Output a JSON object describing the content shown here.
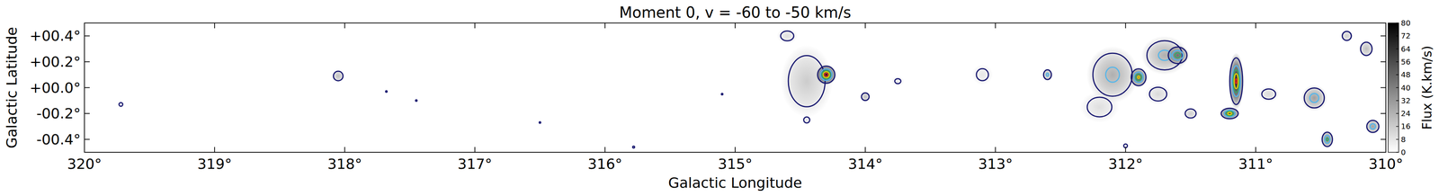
{
  "chart_data": {
    "type": "heatmap",
    "title": "Moment 0, v = -60 to -50 km/s",
    "x_label": "Galactic Longitude",
    "y_label": "Galactic Latitude",
    "xlim": [
      320,
      310
    ],
    "ylim": [
      -0.5,
      0.5
    ],
    "xticks": [
      {
        "value": 320,
        "label": "320°"
      },
      {
        "value": 319,
        "label": "319°"
      },
      {
        "value": 318,
        "label": "318°"
      },
      {
        "value": 317,
        "label": "317°"
      },
      {
        "value": 316,
        "label": "316°"
      },
      {
        "value": 315,
        "label": "315°"
      },
      {
        "value": 314,
        "label": "314°"
      },
      {
        "value": 313,
        "label": "313°"
      },
      {
        "value": 312,
        "label": "312°"
      },
      {
        "value": 311,
        "label": "311°"
      },
      {
        "value": 310,
        "label": "310°"
      }
    ],
    "yticks": [
      {
        "value": 0.4,
        "label": "+00.4°"
      },
      {
        "value": 0.2,
        "label": "+00.2°"
      },
      {
        "value": 0,
        "label": "+00.0°"
      },
      {
        "value": -0.2,
        "label": "-00.2°"
      },
      {
        "value": -0.4,
        "label": "-00.4°"
      }
    ],
    "contour_levels": [
      4,
      20,
      36,
      52,
      68
    ],
    "sources": [
      {
        "l": 319.72,
        "b": -0.13,
        "flux": 6,
        "size_l": 0.03,
        "size_b": 0.03
      },
      {
        "l": 318.05,
        "b": 0.09,
        "flux": 20,
        "size_l": 0.05,
        "size_b": 0.05
      },
      {
        "l": 317.68,
        "b": -0.03,
        "flux": 5,
        "size_l": 0.015,
        "size_b": 0.015
      },
      {
        "l": 317.45,
        "b": -0.1,
        "flux": 5,
        "size_l": 0.015,
        "size_b": 0.015
      },
      {
        "l": 316.5,
        "b": -0.27,
        "flux": 5,
        "size_l": 0.012,
        "size_b": 0.012
      },
      {
        "l": 315.78,
        "b": -0.46,
        "flux": 5,
        "size_l": 0.02,
        "size_b": 0.02
      },
      {
        "l": 315.1,
        "b": -0.05,
        "flux": 5,
        "size_l": 0.015,
        "size_b": 0.015
      },
      {
        "l": 314.45,
        "b": 0.05,
        "flux": 16,
        "size_l": 0.2,
        "size_b": 0.28
      },
      {
        "l": 314.3,
        "b": 0.1,
        "flux": 75,
        "size_l": 0.08,
        "size_b": 0.08
      },
      {
        "l": 314.0,
        "b": -0.07,
        "flux": 20,
        "size_l": 0.04,
        "size_b": 0.04
      },
      {
        "l": 314.45,
        "b": -0.25,
        "flux": 8,
        "size_l": 0.04,
        "size_b": 0.04
      },
      {
        "l": 314.6,
        "b": 0.4,
        "flux": 10,
        "size_l": 0.08,
        "size_b": 0.06
      },
      {
        "l": 313.75,
        "b": 0.05,
        "flux": 6,
        "size_l": 0.05,
        "size_b": 0.04
      },
      {
        "l": 313.1,
        "b": 0.1,
        "flux": 8,
        "size_l": 0.08,
        "size_b": 0.08
      },
      {
        "l": 312.6,
        "b": 0.1,
        "flux": 24,
        "size_l": 0.04,
        "size_b": 0.05
      },
      {
        "l": 312.1,
        "b": 0.1,
        "flux": 25,
        "size_l": 0.2,
        "size_b": 0.22
      },
      {
        "l": 311.9,
        "b": 0.08,
        "flux": 55,
        "size_l": 0.07,
        "size_b": 0.08
      },
      {
        "l": 311.7,
        "b": 0.25,
        "flux": 25,
        "size_l": 0.18,
        "size_b": 0.15
      },
      {
        "l": 311.6,
        "b": 0.25,
        "flux": 45,
        "size_l": 0.09,
        "size_b": 0.08
      },
      {
        "l": 312.2,
        "b": -0.15,
        "flux": 10,
        "size_l": 0.15,
        "size_b": 0.12
      },
      {
        "l": 311.75,
        "b": -0.05,
        "flux": 12,
        "size_l": 0.1,
        "size_b": 0.08
      },
      {
        "l": 311.5,
        "b": -0.2,
        "flux": 15,
        "size_l": 0.06,
        "size_b": 0.05
      },
      {
        "l": 311.15,
        "b": 0.05,
        "flux": 70,
        "size_l": 0.06,
        "size_b": 0.22
      },
      {
        "l": 311.2,
        "b": -0.2,
        "flux": 60,
        "size_l": 0.08,
        "size_b": 0.05
      },
      {
        "l": 310.9,
        "b": -0.05,
        "flux": 12,
        "size_l": 0.08,
        "size_b": 0.06
      },
      {
        "l": 310.55,
        "b": -0.08,
        "flux": 30,
        "size_l": 0.1,
        "size_b": 0.1
      },
      {
        "l": 310.45,
        "b": -0.4,
        "flux": 40,
        "size_l": 0.05,
        "size_b": 0.07
      },
      {
        "l": 310.1,
        "b": -0.3,
        "flux": 30,
        "size_l": 0.06,
        "size_b": 0.06
      },
      {
        "l": 310.15,
        "b": 0.3,
        "flux": 20,
        "size_l": 0.06,
        "size_b": 0.07
      },
      {
        "l": 310.3,
        "b": 0.4,
        "flux": 15,
        "size_l": 0.05,
        "size_b": 0.05
      },
      {
        "l": 312.0,
        "b": -0.45,
        "flux": 6,
        "size_l": 0.03,
        "size_b": 0.03
      }
    ],
    "colorbar": {
      "label": "Flux (K.km/s)",
      "range": [
        0,
        80
      ],
      "ticks": [
        0,
        8,
        16,
        24,
        32,
        40,
        48,
        56,
        64,
        72,
        80
      ]
    }
  }
}
